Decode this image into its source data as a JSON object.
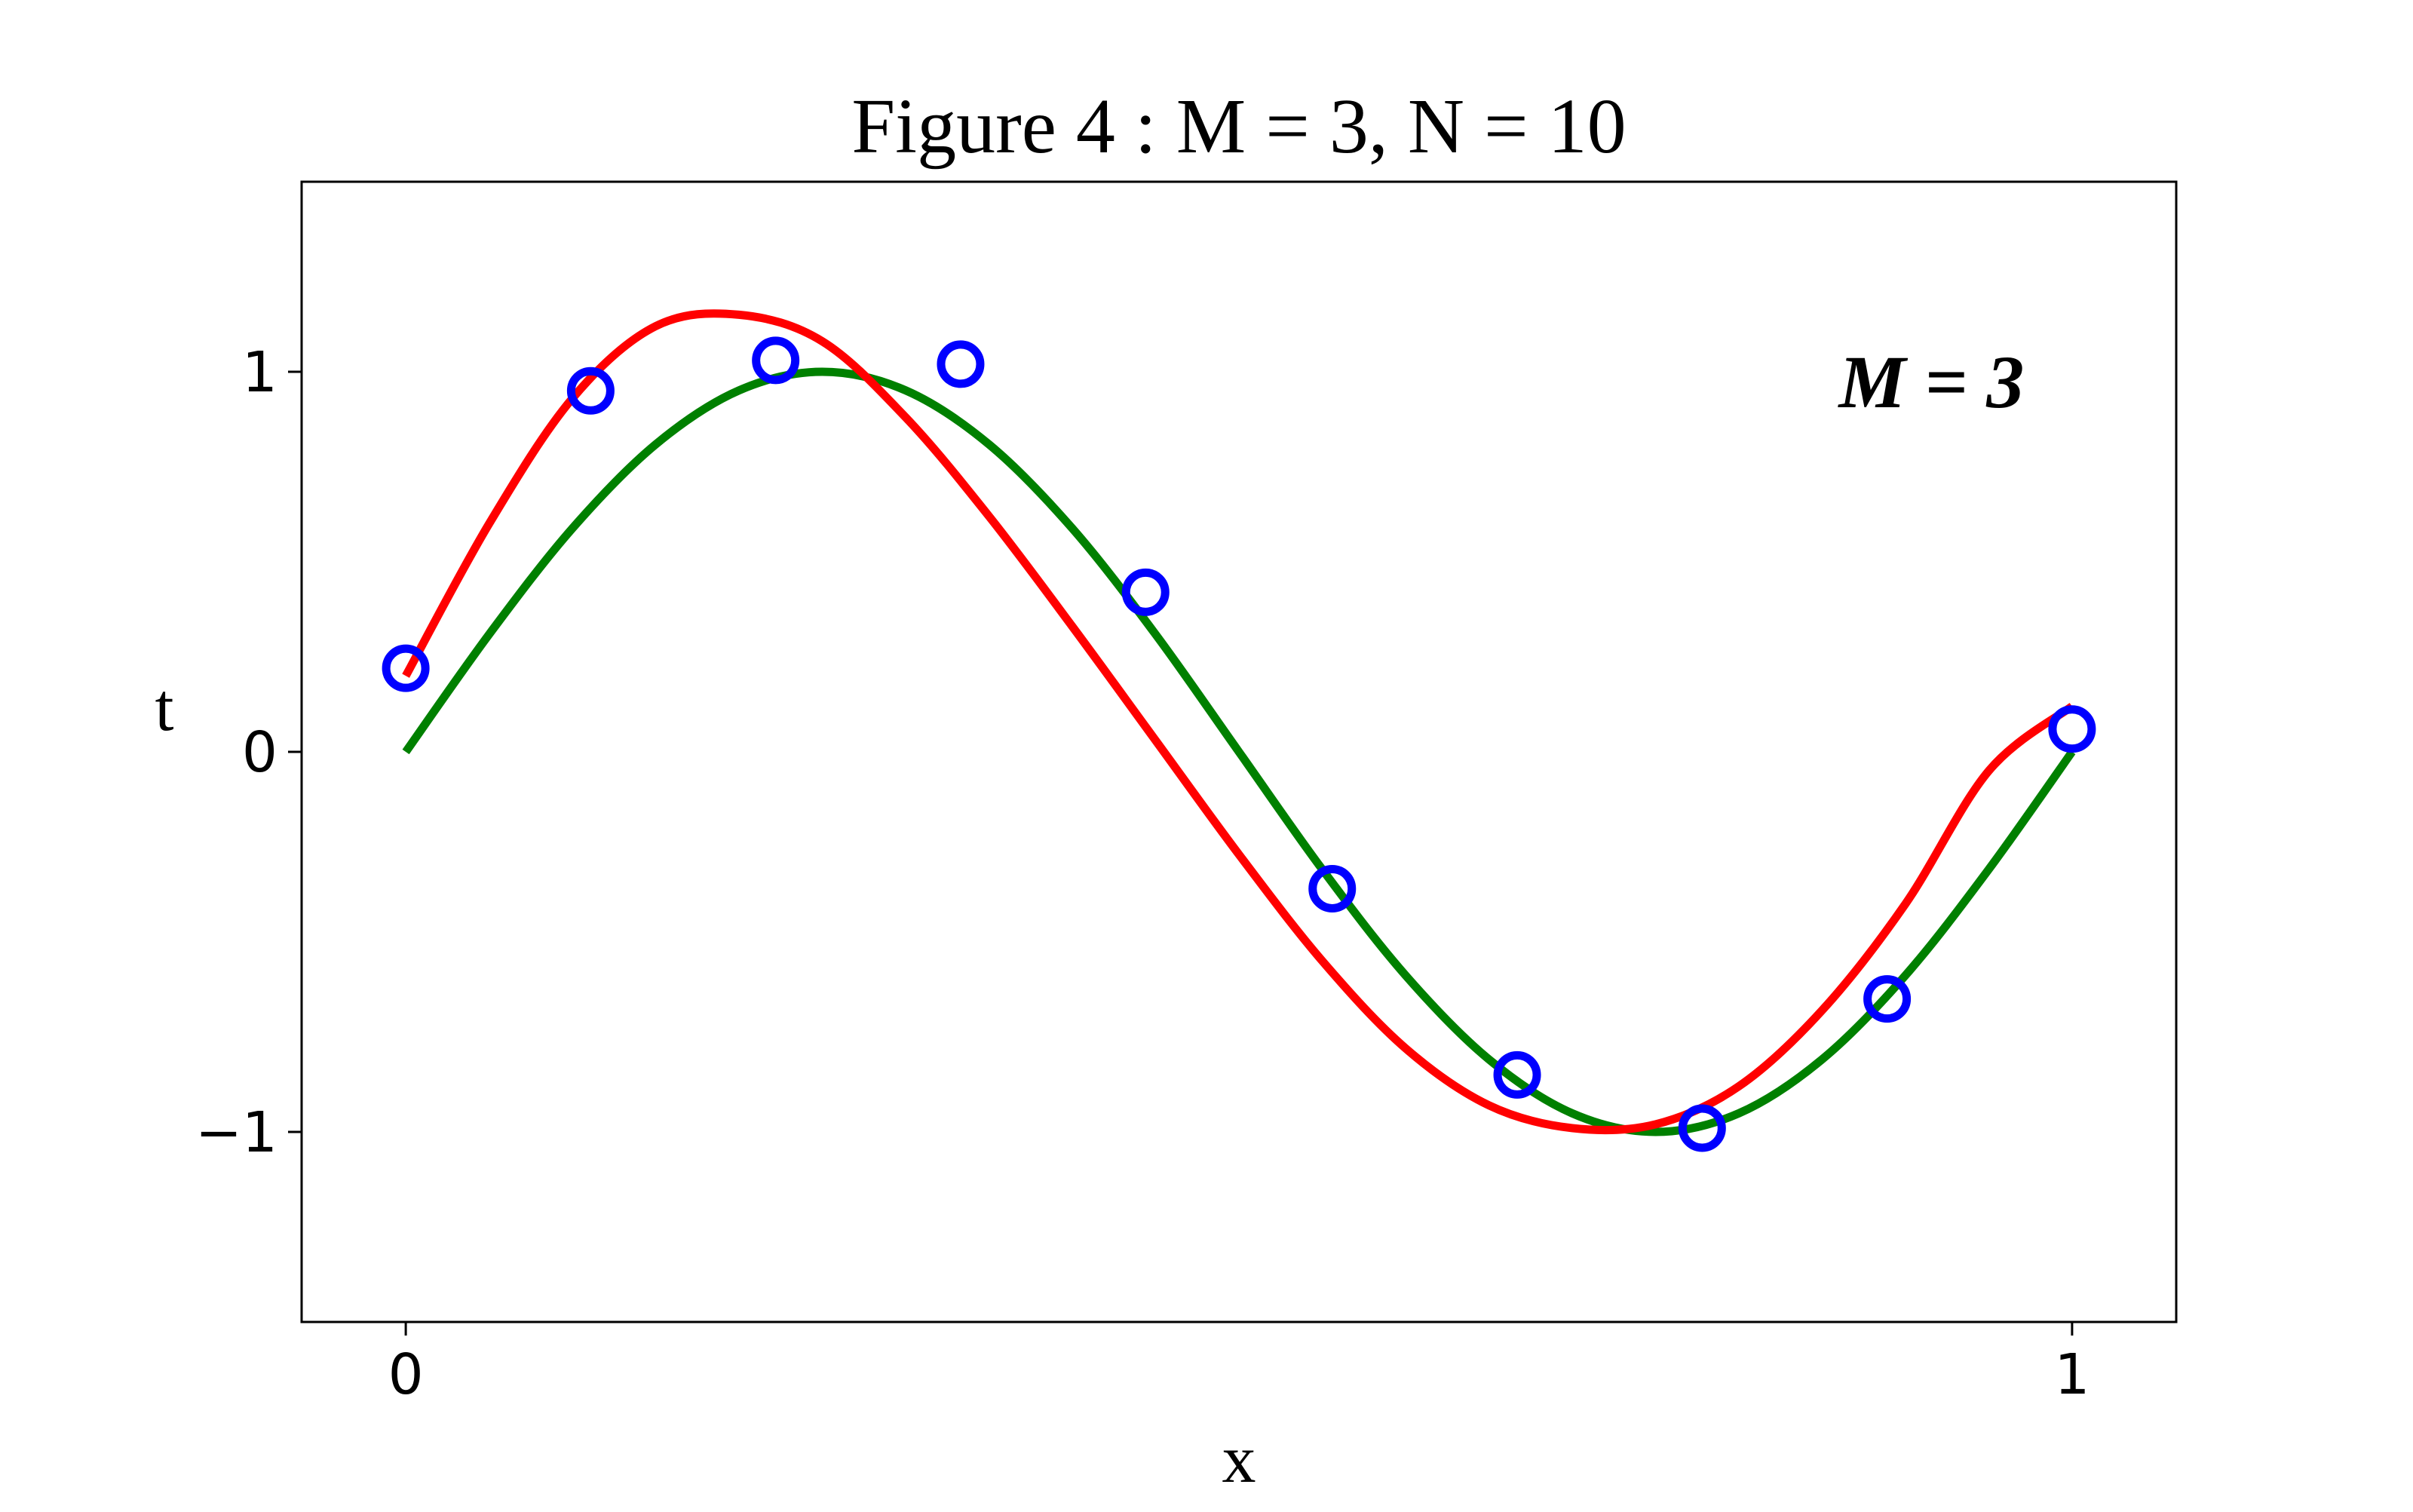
{
  "chart_data": {
    "type": "line",
    "title": "Figure 4 : M = 3, N = 10",
    "xlabel": "x",
    "ylabel": "t",
    "xlim": [
      -0.0625,
      1.0625
    ],
    "ylim": [
      -1.5,
      1.5
    ],
    "xticks": [
      {
        "value": 0,
        "label": "0"
      },
      {
        "value": 1,
        "label": "1"
      }
    ],
    "yticks": [
      {
        "value": 1,
        "label": "1"
      },
      {
        "value": 0,
        "label": "0"
      },
      {
        "value": -1,
        "label": "−1"
      }
    ],
    "grid": false,
    "legend": null,
    "annotation": {
      "text": "M = 3",
      "x": 0.86,
      "y": 0.97
    },
    "series": [
      {
        "kind": "line",
        "color": "#008000",
        "x": [
          0,
          0.05,
          0.1,
          0.15,
          0.2,
          0.25,
          0.3,
          0.35,
          0.4,
          0.45,
          0.5,
          0.55,
          0.6,
          0.65,
          0.7,
          0.75,
          0.8,
          0.85,
          0.9,
          0.95,
          1.0
        ],
        "y": [
          0,
          0.309,
          0.588,
          0.809,
          0.951,
          1.0,
          0.951,
          0.809,
          0.588,
          0.309,
          0,
          -0.309,
          -0.588,
          -0.809,
          -0.951,
          -1.0,
          -0.951,
          -0.809,
          -0.588,
          -0.309,
          0
        ]
      },
      {
        "kind": "line",
        "color": "#ff0000",
        "x": [
          0,
          0.05,
          0.1,
          0.15,
          0.2,
          0.25,
          0.3,
          0.35,
          0.4,
          0.45,
          0.5,
          0.55,
          0.6,
          0.65,
          0.7,
          0.75,
          0.8,
          0.85,
          0.9,
          0.95,
          1.0
        ],
        "y": [
          0.2,
          0.6,
          0.93,
          1.12,
          1.15,
          1.08,
          0.88,
          0.62,
          0.33,
          0.03,
          -0.27,
          -0.55,
          -0.78,
          -0.93,
          -0.99,
          -0.98,
          -0.88,
          -0.68,
          -0.4,
          -0.05,
          0.12
        ]
      },
      {
        "kind": "scatter",
        "color": "#0000ff",
        "x": [
          0,
          0.111,
          0.222,
          0.333,
          0.444,
          0.556,
          0.667,
          0.778,
          0.889,
          1.0
        ],
        "y": [
          0.22,
          0.95,
          1.03,
          1.02,
          0.42,
          -0.36,
          -0.85,
          -0.99,
          -0.65,
          0.06
        ]
      }
    ]
  }
}
